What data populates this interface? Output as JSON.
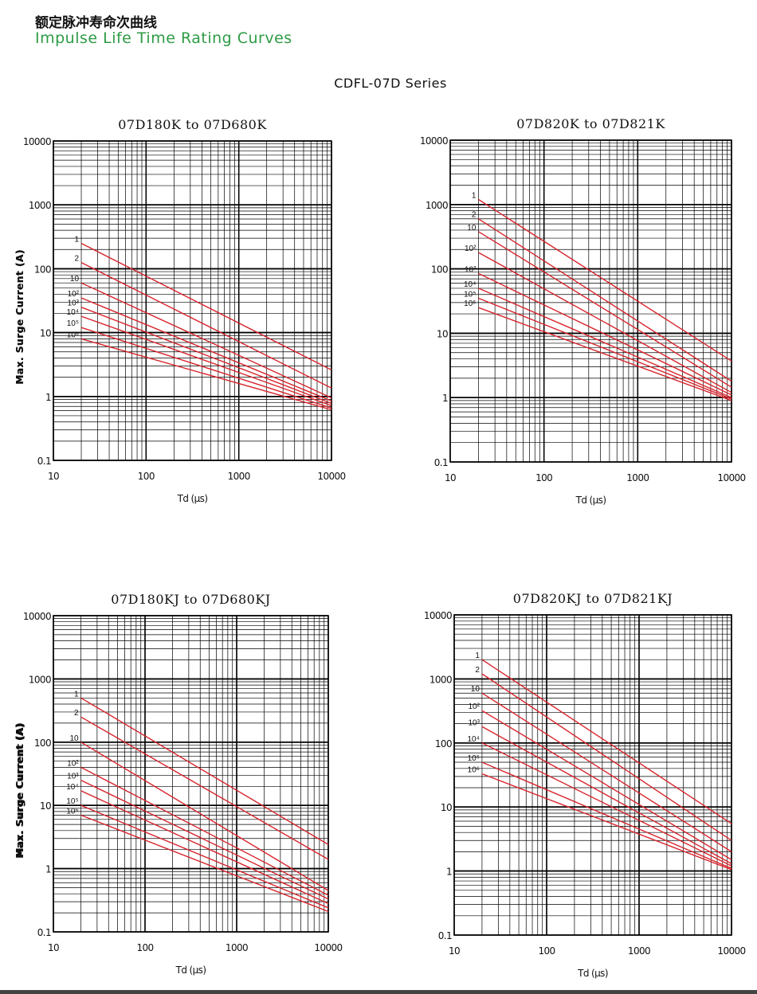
{
  "header": {
    "title_cn": "额定脉冲寿命次曲线",
    "title_en": "Impulse Life Time Rating Curves",
    "series": "CDFL-07D Series"
  },
  "colors": {
    "curve": "#d8242c",
    "grid": "#000000",
    "title_en": "#2e9b45"
  },
  "chart_data": [
    {
      "type": "line",
      "title": "07D180K to 07D680K",
      "xlabel": "Td (μs)",
      "ylabel": "Max. Surge Current (A)",
      "xscale": "log",
      "yscale": "log",
      "xlim": [
        10,
        10000
      ],
      "ylim": [
        0.1,
        10000
      ],
      "xticks": [
        "10",
        "100",
        "1000",
        "10000"
      ],
      "yticks": [
        "0.1",
        "1",
        "10",
        "100",
        "1000",
        "10000"
      ],
      "grid": true,
      "series": [
        {
          "name": "1",
          "points": [
            [
              20,
              250
            ],
            [
              10000,
              2.6
            ]
          ]
        },
        {
          "name": "2",
          "points": [
            [
              20,
              125
            ],
            [
              10000,
              1.35
            ]
          ]
        },
        {
          "name": "10",
          "points": [
            [
              20,
              60
            ],
            [
              10000,
              0.95
            ]
          ]
        },
        {
          "name": "10²",
          "points": [
            [
              20,
              35
            ],
            [
              10000,
              0.85
            ]
          ]
        },
        {
          "name": "10³",
          "points": [
            [
              20,
              25
            ],
            [
              10000,
              0.78
            ]
          ]
        },
        {
          "name": "10⁴",
          "points": [
            [
              20,
              18
            ],
            [
              10000,
              0.72
            ]
          ]
        },
        {
          "name": "10⁵",
          "points": [
            [
              20,
              12
            ],
            [
              10000,
              0.66
            ]
          ]
        },
        {
          "name": "10⁶",
          "points": [
            [
              20,
              8
            ],
            [
              10000,
              0.62
            ]
          ]
        }
      ]
    },
    {
      "type": "line",
      "title": "07D820K to 07D821K",
      "xlabel": "Td (μs)",
      "ylabel": "Max. Surge Current (A)",
      "xscale": "log",
      "yscale": "log",
      "xlim": [
        10,
        10000
      ],
      "ylim": [
        0.1,
        10000
      ],
      "xticks": [
        "10",
        "100",
        "1000",
        "10000"
      ],
      "yticks": [
        "0.1",
        "1",
        "10",
        "100",
        "1000",
        "10000"
      ],
      "grid": true,
      "series": [
        {
          "name": "1",
          "points": [
            [
              20,
              1200
            ],
            [
              10000,
              3.7
            ]
          ]
        },
        {
          "name": "2",
          "points": [
            [
              20,
              600
            ],
            [
              10000,
              1.8
            ]
          ]
        },
        {
          "name": "10",
          "points": [
            [
              20,
              380
            ],
            [
              10000,
              1.45
            ]
          ]
        },
        {
          "name": "10²",
          "points": [
            [
              20,
              180
            ],
            [
              10000,
              1.2
            ]
          ]
        },
        {
          "name": "10³",
          "points": [
            [
              20,
              85
            ],
            [
              10000,
              1.1
            ]
          ]
        },
        {
          "name": "10⁴",
          "points": [
            [
              20,
              50
            ],
            [
              10000,
              1.0
            ]
          ]
        },
        {
          "name": "10⁵",
          "points": [
            [
              20,
              35
            ],
            [
              10000,
              0.95
            ]
          ]
        },
        {
          "name": "10⁶",
          "points": [
            [
              20,
              25
            ],
            [
              10000,
              0.9
            ]
          ]
        }
      ]
    },
    {
      "type": "line",
      "title": "07D180KJ to 07D680KJ",
      "xlabel": "Td (μs)",
      "ylabel": "Max. Surge Current (A)",
      "xscale": "log",
      "yscale": "log",
      "xlim": [
        10,
        10000
      ],
      "ylim": [
        0.1,
        10000
      ],
      "xticks": [
        "10",
        "100",
        "1000",
        "10000"
      ],
      "yticks": [
        "0.1",
        "1",
        "10",
        "100",
        "1000",
        "10000"
      ],
      "grid": true,
      "series": [
        {
          "name": "1",
          "points": [
            [
              20,
              500
            ],
            [
              10000,
              2.4
            ]
          ]
        },
        {
          "name": "2",
          "points": [
            [
              20,
              250
            ],
            [
              10000,
              1.4
            ]
          ]
        },
        {
          "name": "10",
          "points": [
            [
              20,
              100
            ],
            [
              10000,
              0.45
            ]
          ]
        },
        {
          "name": "10²",
          "points": [
            [
              20,
              40
            ],
            [
              10000,
              0.38
            ]
          ]
        },
        {
          "name": "10³",
          "points": [
            [
              20,
              25
            ],
            [
              10000,
              0.33
            ]
          ]
        },
        {
          "name": "10⁴",
          "points": [
            [
              20,
              17
            ],
            [
              10000,
              0.28
            ]
          ]
        },
        {
          "name": "10⁵",
          "points": [
            [
              20,
              10
            ],
            [
              10000,
              0.24
            ]
          ]
        },
        {
          "name": "10⁶",
          "points": [
            [
              20,
              7
            ],
            [
              10000,
              0.21
            ]
          ]
        }
      ]
    },
    {
      "type": "line",
      "title": "07D820KJ to 07D821KJ",
      "xlabel": "Td (μs)",
      "ylabel": "Max. Surge Current (A)",
      "xscale": "log",
      "yscale": "log",
      "xlim": [
        10,
        10000
      ],
      "ylim": [
        0.1,
        10000
      ],
      "xticks": [
        "10",
        "100",
        "1000",
        "10000"
      ],
      "yticks": [
        "0.1",
        "1",
        "10",
        "100",
        "1000",
        "10000"
      ],
      "grid": true,
      "series": [
        {
          "name": "1",
          "points": [
            [
              20,
              2000
            ],
            [
              10000,
              5.5
            ]
          ]
        },
        {
          "name": "2",
          "points": [
            [
              20,
              1200
            ],
            [
              10000,
              3.0
            ]
          ]
        },
        {
          "name": "10",
          "points": [
            [
              20,
              600
            ],
            [
              10000,
              2.0
            ]
          ]
        },
        {
          "name": "10²",
          "points": [
            [
              20,
              320
            ],
            [
              10000,
              1.5
            ]
          ]
        },
        {
          "name": "10³",
          "points": [
            [
              20,
              180
            ],
            [
              10000,
              1.3
            ]
          ]
        },
        {
          "name": "10⁴",
          "points": [
            [
              20,
              100
            ],
            [
              10000,
              1.2
            ]
          ]
        },
        {
          "name": "10⁵",
          "points": [
            [
              20,
              50
            ],
            [
              10000,
              1.1
            ]
          ]
        },
        {
          "name": "10⁶",
          "points": [
            [
              20,
              33
            ],
            [
              10000,
              1.05
            ]
          ]
        }
      ]
    }
  ]
}
